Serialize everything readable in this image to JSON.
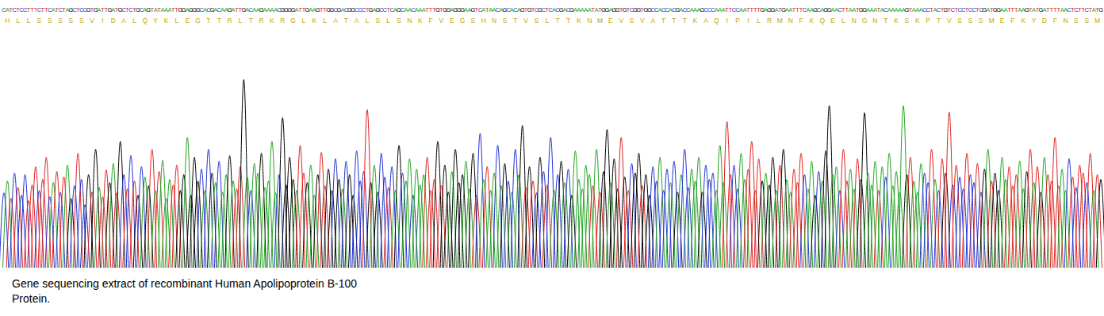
{
  "chart_data": {
    "type": "chromatogram",
    "sequence": "CATCTCCTTTCTTCATCTAGCTCCGTGATTGATGCTCTGCAGTATAAATTGGAGGGCACGACAAGATTGACAAGAAAACGGGGATTGAAGTTGGCGACGGCCCTGAGCCTCAGCAACAAATTTGTGGAGGGAAGTCATAACAGCACAGTGTCGCTCACGACGAAAAATATGGAGGTGTCGGTGGCCACCACGACCAAAGCCCAAATTCCAATTTTGAGGATGAATTTCAAGCAGGAACTTAATGGAAATACAAAAAGTAAACCTACTGTCTCCTCCTCGATGGAATTTAAGTATGATTTTAACTCTTCTATG",
    "translation": "HLLSSSSSVIDALQYKLEGTTRLTRKRGLKLATALSLSNKFVEGSHNSTVSLTTKNMEVSVATTTKAQIPILRMNFKQELNGNTKSKPTVSSSMEFKYDFNSSM",
    "peak_heights": [
      95,
      110,
      88,
      120,
      102,
      92,
      118,
      85,
      105,
      128,
      98,
      112,
      140,
      90,
      108,
      122,
      96,
      115,
      130,
      88,
      104,
      145,
      112,
      80,
      118,
      96,
      150,
      102,
      90,
      124,
      108,
      132,
      95,
      160,
      118,
      100,
      142,
      110,
      92,
      128,
      115,
      104,
      150,
      98,
      122,
      136,
      88,
      112,
      105,
      130,
      98,
      118,
      165,
      92,
      140,
      110,
      125,
      98,
      150,
      120,
      108,
      135,
      96,
      118,
      142,
      110,
      100,
      128,
      238,
      115,
      98,
      132,
      120,
      145,
      102,
      110,
      160,
      95,
      118,
      190,
      105,
      140,
      112,
      98,
      155,
      120,
      108,
      130,
      92,
      118,
      146,
      104,
      125,
      98,
      138,
      112,
      100,
      135,
      118,
      92,
      148,
      110,
      122,
      200,
      108,
      130,
      96,
      145,
      115,
      102,
      128,
      98,
      155,
      120,
      110,
      138,
      92,
      125,
      105,
      118,
      140,
      98,
      112,
      160,
      104,
      130,
      96,
      122,
      150,
      108,
      118,
      135,
      100,
      145,
      92,
      170,
      112,
      128,
      98,
      120,
      155,
      104,
      132,
      110,
      96,
      150,
      118,
      180,
      102,
      128,
      110,
      95,
      140,
      122,
      105,
      165,
      98,
      118,
      135,
      108,
      125,
      92,
      148,
      112,
      100,
      130,
      118,
      104,
      150,
      96,
      122,
      175,
      108,
      138,
      100,
      165,
      115,
      98,
      132,
      120,
      145,
      104,
      118,
      92,
      128,
      110,
      140,
      98,
      125,
      108,
      135,
      96,
      118,
      150,
      102,
      125,
      110,
      140,
      96,
      130,
      112,
      120,
      98,
      155,
      108,
      185,
      118,
      130,
      100,
      145,
      112,
      125,
      160,
      98,
      138,
      110,
      120,
      105,
      140,
      98,
      130,
      150,
      112,
      96,
      125,
      108,
      145,
      118,
      100,
      135,
      92,
      122,
      110,
      148,
      205,
      118,
      128,
      98,
      150,
      110,
      125,
      100,
      138,
      112,
      196,
      120,
      105,
      135,
      98,
      128,
      115,
      145,
      104,
      122,
      96,
      205,
      118,
      140,
      110,
      96,
      132,
      120,
      108,
      150,
      112,
      98,
      138,
      120,
      197,
      105,
      130,
      115,
      100,
      145,
      118,
      108,
      132,
      96,
      125,
      150,
      110,
      120,
      98,
      140,
      112,
      128,
      104,
      118,
      135,
      100,
      122,
      150,
      108,
      128,
      96,
      140,
      118,
      110,
      165,
      104,
      125,
      98,
      138,
      115,
      102,
      130,
      120,
      108,
      145,
      98,
      118,
      112
    ],
    "base_colors": {
      "A": "#1fa21f",
      "C": "#1f2fd0",
      "G": "#000000",
      "T": "#e0201f"
    },
    "translation_color": "#c9a300",
    "xlim": [
      -1,
      312
    ],
    "ylim": [
      0,
      250
    ],
    "tick_labels": false,
    "grid": false,
    "caption": [
      "Gene sequencing extract of recombinant Human Apolipoprotein B-100",
      "Protein."
    ]
  }
}
